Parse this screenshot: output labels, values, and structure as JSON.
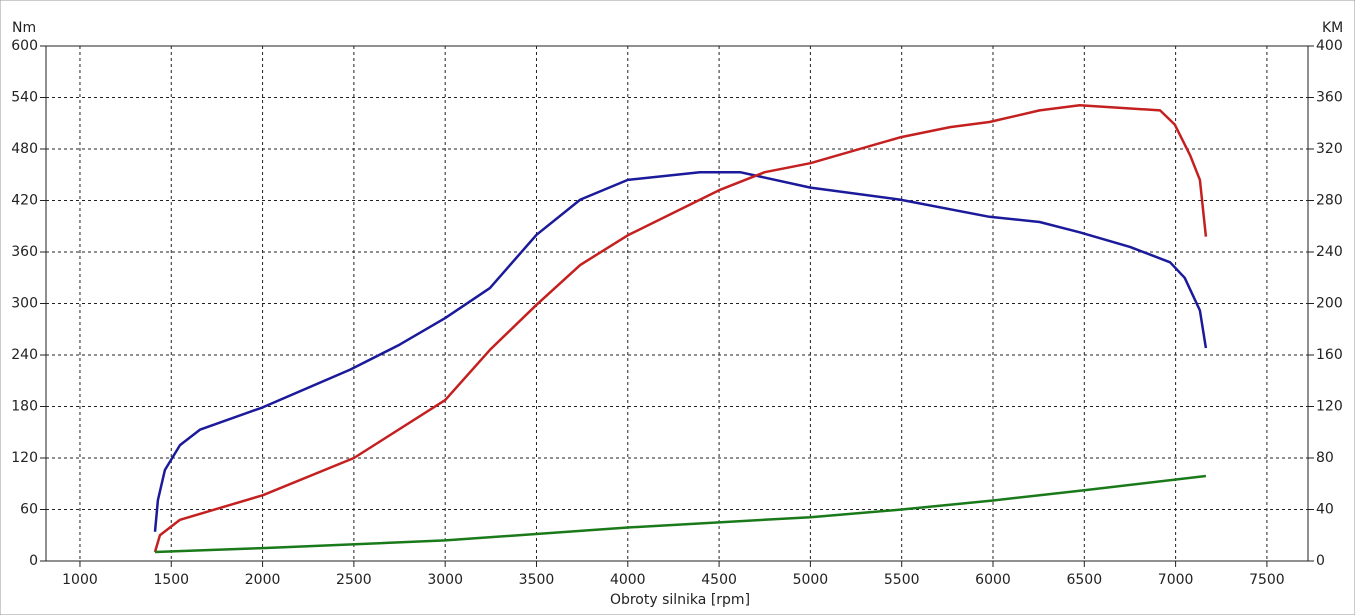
{
  "chart_data": {
    "type": "line",
    "y_label": "Nm",
    "y2_label": "KM",
    "x_label": "Obroty silnika [rpm]",
    "xlim": [
      814,
      7725
    ],
    "xticks": [
      1000,
      1500,
      2000,
      2500,
      3000,
      3500,
      4000,
      4500,
      5000,
      5500,
      6000,
      6500,
      7000,
      7500
    ],
    "ylim": [
      0,
      600
    ],
    "yticks": [
      0,
      60,
      120,
      180,
      240,
      300,
      360,
      420,
      480,
      540,
      600
    ],
    "y2lim": [
      0,
      400
    ],
    "y2ticks": [
      0,
      40,
      80,
      120,
      160,
      200,
      240,
      280,
      320,
      360,
      400
    ],
    "grid": true,
    "series": [
      {
        "color": "#1a1a9a",
        "axis": "y",
        "x": [
          1411,
          1427,
          1465,
          1548,
          1657,
          2000,
          2480,
          2750,
          3000,
          3245,
          3500,
          3740,
          4000,
          4395,
          4615,
          5000,
          5490,
          5980,
          6255,
          6475,
          6750,
          6970,
          7050,
          7133,
          7166
        ],
        "values": [
          34,
          71,
          106,
          135,
          153,
          179,
          223,
          252,
          283,
          318,
          380,
          421,
          444,
          453,
          453,
          435,
          421,
          401,
          395,
          383,
          366,
          348,
          330,
          292,
          248
        ]
      },
      {
        "color": "#c42020",
        "axis": "y2",
        "x": [
          1411,
          1438,
          1548,
          2000,
          2500,
          3000,
          3245,
          3500,
          3740,
          4000,
          4500,
          4750,
          5000,
          5490,
          5765,
          5980,
          6255,
          6475,
          6915,
          6995,
          7080,
          7133,
          7166
        ],
        "values": [
          7,
          20,
          32,
          51,
          80,
          125,
          164,
          199,
          230,
          253,
          288,
          302,
          309,
          329,
          337,
          341,
          350,
          354,
          350,
          339,
          315,
          296,
          252
        ]
      },
      {
        "color": "#1a7a1a",
        "axis": "y2",
        "x": [
          1411,
          2000,
          3000,
          4000,
          5000,
          5500,
          6000,
          6500,
          7166
        ],
        "values": [
          7,
          10,
          16,
          26,
          34,
          40,
          47,
          55,
          66
        ]
      }
    ]
  }
}
